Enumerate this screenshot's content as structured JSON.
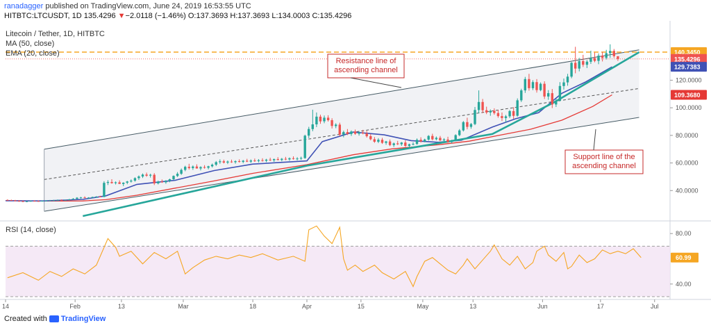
{
  "header": {
    "user": "ranadagger",
    "published_text": "published on TradingView.com, June 24, 2019 16:53:55 UTC",
    "symbol_line": "HITBTC:LTCUSDT, 1D",
    "last_price": "135.4296",
    "change_arrow": "▼",
    "change": "−2.0118 (−1.46%)",
    "ohlc": "O:137.3693 H:137.3693 L:134.0003 C:135.4296"
  },
  "footer": {
    "prefix": "Created with",
    "brand": "TradingView"
  },
  "legend": {
    "main": "Litecoin / Tether, 1D, HITBTC",
    "ma": "MA (50, close)",
    "ema": "EMA (20, close)",
    "rsi": "RSI (14, close)"
  },
  "annotations": {
    "resistance": [
      "Resistance line of",
      "ascending channel"
    ],
    "support": [
      "Support line of the",
      "ascending channel"
    ]
  },
  "price_badges": [
    {
      "text": "140.3450",
      "color": "#f5a623",
      "value": 140.345
    },
    {
      "text": "135.4296",
      "color": "#ef5350",
      "value": 135.4296
    },
    {
      "text": "129.7383",
      "color": "#3f51b5",
      "value": 129.7383
    },
    {
      "text": "109.3680",
      "color": "#e53935",
      "value": 109.368
    }
  ],
  "rsi_badge": {
    "text": "60.99",
    "color": "#f5a623"
  },
  "colors": {
    "up": "#26a69a",
    "down": "#ef5350",
    "ema": "#3f51b5",
    "ma": "#e53935",
    "rsi": "#f5a623",
    "channel": "#26a69a",
    "resistance_hline": "#f5a623"
  },
  "chart_data": {
    "type": "candlestick",
    "title": "Litecoin / Tether, 1D, HITBTC",
    "ylim": [
      20,
      160
    ],
    "y_ticks": [
      "40.0000",
      "60.0000",
      "80.0000",
      "100.0000",
      "120.0000"
    ],
    "x_ticks": [
      "14",
      "Feb",
      "13",
      "Mar",
      "18",
      "Apr",
      "15",
      "May",
      "13",
      "Jun",
      "17",
      "Jul"
    ],
    "x_tick_days": [
      0,
      18,
      30,
      46,
      64,
      78,
      92,
      108,
      121,
      139,
      154,
      168
    ],
    "x_days_total": 172,
    "ohlc": [
      [
        33.2,
        33.6,
        32.7,
        33.1
      ],
      [
        33.1,
        33.4,
        32.6,
        32.8
      ],
      [
        32.8,
        33.2,
        32.2,
        32.5
      ],
      [
        32.5,
        32.9,
        31.9,
        32.3
      ],
      [
        32.3,
        32.7,
        31.6,
        32.0
      ],
      [
        32.0,
        32.6,
        31.6,
        32.2
      ],
      [
        32.2,
        32.8,
        31.9,
        32.5
      ],
      [
        32.5,
        32.9,
        32.1,
        32.4
      ],
      [
        32.4,
        32.8,
        32.0,
        32.3
      ],
      [
        32.3,
        32.7,
        31.9,
        32.6
      ],
      [
        32.6,
        33.0,
        32.2,
        32.8
      ],
      [
        32.8,
        33.2,
        32.4,
        32.9
      ],
      [
        32.9,
        33.3,
        32.5,
        33.0
      ],
      [
        33.0,
        33.5,
        32.6,
        33.2
      ],
      [
        33.2,
        33.6,
        32.8,
        33.0
      ],
      [
        33.0,
        33.4,
        32.6,
        33.3
      ],
      [
        33.3,
        34.0,
        32.9,
        33.6
      ],
      [
        33.6,
        34.6,
        33.2,
        34.0
      ],
      [
        34.0,
        35.2,
        33.6,
        34.8
      ],
      [
        34.8,
        35.4,
        34.2,
        35.0
      ],
      [
        35.0,
        35.8,
        34.4,
        34.6
      ],
      [
        34.6,
        35.2,
        34.0,
        34.9
      ],
      [
        34.9,
        35.6,
        34.4,
        35.3
      ],
      [
        35.3,
        36.0,
        34.9,
        35.6
      ],
      [
        35.6,
        36.2,
        35.1,
        35.4
      ],
      [
        35.4,
        46.8,
        35.2,
        45.6
      ],
      [
        45.6,
        47.5,
        44.0,
        46.2
      ],
      [
        46.2,
        48.2,
        45.0,
        45.4
      ],
      [
        45.4,
        46.6,
        44.4,
        46.0
      ],
      [
        46.0,
        47.4,
        45.1,
        44.8
      ],
      [
        44.8,
        46.0,
        43.2,
        45.7
      ],
      [
        45.7,
        47.0,
        44.6,
        46.6
      ],
      [
        46.6,
        48.1,
        45.8,
        47.2
      ],
      [
        47.2,
        49.6,
        46.4,
        49.0
      ],
      [
        49.0,
        51.0,
        47.7,
        50.2
      ],
      [
        50.2,
        52.4,
        49.1,
        51.6
      ],
      [
        51.6,
        53.0,
        50.0,
        50.8
      ],
      [
        50.8,
        52.2,
        49.4,
        51.4
      ],
      [
        51.4,
        52.6,
        44.0,
        45.2
      ],
      [
        45.2,
        47.2,
        44.4,
        46.5
      ],
      [
        46.5,
        48.0,
        45.6,
        46.0
      ],
      [
        46.0,
        47.6,
        44.9,
        47.0
      ],
      [
        47.0,
        48.6,
        46.0,
        48.2
      ],
      [
        48.2,
        51.0,
        47.4,
        50.6
      ],
      [
        50.6,
        53.4,
        49.8,
        52.2
      ],
      [
        52.2,
        56.0,
        51.4,
        55.0
      ],
      [
        55.0,
        58.0,
        54.0,
        57.2
      ],
      [
        57.2,
        59.4,
        55.2,
        56.3
      ],
      [
        56.3,
        58.2,
        55.0,
        57.4
      ],
      [
        57.4,
        59.0,
        55.9,
        56.0
      ],
      [
        56.0,
        57.6,
        54.6,
        57.0
      ],
      [
        57.0,
        58.4,
        55.9,
        56.5
      ],
      [
        56.5,
        58.0,
        55.4,
        57.6
      ],
      [
        57.6,
        59.6,
        56.7,
        58.8
      ],
      [
        58.8,
        61.4,
        57.8,
        60.6
      ],
      [
        60.6,
        62.6,
        59.4,
        61.2
      ],
      [
        61.2,
        62.4,
        59.6,
        60.3
      ],
      [
        60.3,
        61.8,
        59.2,
        61.0
      ],
      [
        61.0,
        62.4,
        60.1,
        60.6
      ],
      [
        60.6,
        61.9,
        59.5,
        61.3
      ],
      [
        61.3,
        62.6,
        60.3,
        60.8
      ],
      [
        60.8,
        62.2,
        59.8,
        61.6
      ],
      [
        61.6,
        63.0,
        60.6,
        61.0
      ],
      [
        61.0,
        62.6,
        60.0,
        61.8
      ],
      [
        61.8,
        63.2,
        60.8,
        61.4
      ],
      [
        61.4,
        62.8,
        60.4,
        62.0
      ],
      [
        62.0,
        63.4,
        61.0,
        61.6
      ],
      [
        61.6,
        63.0,
        60.6,
        62.4
      ],
      [
        62.4,
        63.8,
        61.4,
        62.0
      ],
      [
        62.0,
        63.2,
        60.8,
        62.8
      ],
      [
        62.8,
        64.2,
        61.8,
        62.2
      ],
      [
        62.2,
        63.6,
        61.2,
        63.0
      ],
      [
        63.0,
        64.4,
        62.0,
        62.6
      ],
      [
        62.6,
        64.0,
        61.6,
        63.4
      ],
      [
        63.4,
        64.8,
        62.4,
        62.9
      ],
      [
        62.9,
        64.2,
        61.9,
        63.2
      ],
      [
        63.2,
        64.6,
        62.2,
        63.6
      ],
      [
        63.6,
        80.5,
        63.0,
        79.8
      ],
      [
        79.8,
        86.2,
        78.0,
        84.6
      ],
      [
        84.6,
        98.6,
        83.0,
        88.0
      ],
      [
        88.0,
        96.6,
        86.0,
        93.6
      ],
      [
        93.6,
        95.0,
        88.4,
        90.2
      ],
      [
        90.2,
        94.4,
        88.8,
        92.8
      ],
      [
        92.8,
        94.6,
        90.0,
        91.0
      ],
      [
        91.0,
        92.4,
        85.0,
        86.8
      ],
      [
        86.8,
        88.8,
        85.2,
        87.8
      ],
      [
        87.8,
        89.2,
        79.4,
        80.6
      ],
      [
        80.6,
        83.4,
        78.6,
        82.4
      ],
      [
        82.4,
        84.6,
        80.2,
        81.0
      ],
      [
        81.0,
        83.6,
        79.6,
        82.8
      ],
      [
        82.8,
        84.2,
        80.4,
        81.2
      ],
      [
        81.2,
        83.0,
        79.8,
        82.0
      ],
      [
        82.0,
        84.0,
        80.8,
        81.4
      ],
      [
        81.4,
        83.2,
        78.4,
        79.4
      ],
      [
        79.4,
        81.0,
        76.4,
        77.2
      ],
      [
        77.2,
        78.8,
        74.6,
        75.4
      ],
      [
        75.4,
        78.0,
        74.4,
        76.8
      ],
      [
        76.8,
        78.2,
        73.8,
        74.6
      ],
      [
        74.6,
        76.0,
        73.2,
        75.6
      ],
      [
        75.6,
        77.0,
        72.2,
        73.0
      ],
      [
        73.0,
        74.8,
        71.6,
        74.2
      ],
      [
        74.2,
        76.0,
        73.0,
        73.6
      ],
      [
        73.6,
        75.2,
        72.4,
        74.8
      ],
      [
        74.8,
        76.4,
        71.6,
        72.4
      ],
      [
        72.4,
        74.0,
        70.2,
        73.6
      ],
      [
        73.6,
        75.0,
        72.8,
        73.8
      ],
      [
        73.8,
        77.8,
        73.2,
        76.8
      ],
      [
        76.8,
        78.6,
        74.8,
        75.6
      ],
      [
        75.6,
        77.6,
        75.0,
        77.0
      ],
      [
        77.0,
        80.2,
        76.2,
        79.6
      ],
      [
        79.6,
        81.2,
        76.4,
        77.2
      ],
      [
        77.2,
        79.2,
        76.4,
        78.2
      ],
      [
        78.2,
        79.6,
        75.8,
        76.4
      ],
      [
        76.4,
        78.0,
        75.0,
        77.0
      ],
      [
        77.0,
        79.0,
        74.6,
        75.2
      ],
      [
        75.2,
        76.8,
        74.2,
        76.4
      ],
      [
        76.4,
        80.8,
        75.8,
        80.2
      ],
      [
        80.2,
        84.6,
        79.4,
        83.6
      ],
      [
        83.6,
        90.4,
        82.8,
        89.6
      ],
      [
        89.6,
        92.8,
        84.4,
        86.2
      ],
      [
        86.2,
        89.0,
        84.8,
        88.2
      ],
      [
        88.2,
        100.6,
        87.4,
        98.4
      ],
      [
        98.4,
        112.6,
        96.0,
        104.2
      ],
      [
        104.2,
        106.4,
        96.2,
        98.2
      ],
      [
        98.2,
        100.8,
        95.4,
        96.6
      ],
      [
        96.6,
        98.8,
        94.2,
        97.8
      ],
      [
        97.8,
        99.6,
        95.0,
        96.2
      ],
      [
        96.2,
        98.4,
        92.8,
        94.0
      ],
      [
        94.0,
        96.6,
        90.4,
        92.6
      ],
      [
        92.6,
        94.8,
        89.4,
        93.8
      ],
      [
        93.8,
        98.4,
        92.6,
        97.6
      ],
      [
        97.6,
        100.4,
        92.0,
        94.2
      ],
      [
        94.2,
        106.8,
        93.6,
        105.4
      ],
      [
        105.4,
        113.8,
        104.2,
        112.6
      ],
      [
        112.6,
        122.4,
        110.8,
        120.8
      ],
      [
        120.8,
        124.6,
        112.4,
        114.2
      ],
      [
        114.2,
        120.0,
        112.8,
        118.6
      ],
      [
        118.6,
        120.8,
        111.0,
        112.8
      ],
      [
        112.8,
        118.4,
        112.0,
        117.4
      ],
      [
        117.4,
        119.2,
        106.4,
        108.2
      ],
      [
        108.2,
        112.8,
        105.8,
        110.6
      ],
      [
        110.6,
        113.6,
        99.8,
        102.4
      ],
      [
        102.4,
        106.6,
        100.6,
        105.2
      ],
      [
        105.2,
        118.6,
        104.6,
        115.8
      ],
      [
        115.8,
        121.2,
        113.2,
        118.4
      ],
      [
        118.4,
        124.6,
        116.0,
        122.6
      ],
      [
        122.6,
        133.2,
        121.4,
        132.6
      ],
      [
        132.6,
        144.2,
        125.0,
        128.4
      ],
      [
        128.4,
        136.2,
        126.4,
        133.8
      ],
      [
        133.8,
        138.4,
        129.6,
        131.2
      ],
      [
        131.2,
        134.6,
        128.8,
        133.4
      ],
      [
        133.4,
        141.4,
        131.8,
        136.0
      ],
      [
        136.0,
        140.0,
        133.0,
        134.0
      ],
      [
        134.0,
        139.4,
        131.6,
        137.8
      ],
      [
        137.8,
        140.6,
        133.6,
        136.2
      ],
      [
        136.2,
        142.0,
        135.0,
        139.6
      ],
      [
        139.6,
        146.0,
        136.2,
        141.2
      ],
      [
        141.2,
        142.6,
        136.2,
        137.4
      ],
      [
        137.4,
        137.4,
        134.0,
        135.4
      ]
    ],
    "ema20": [
      [
        0,
        32.6
      ],
      [
        10,
        32.5
      ],
      [
        20,
        33.6
      ],
      [
        26,
        36.2
      ],
      [
        34,
        44.5
      ],
      [
        44,
        47.5
      ],
      [
        54,
        54.5
      ],
      [
        64,
        59.2
      ],
      [
        78,
        61.5
      ],
      [
        82,
        75.5
      ],
      [
        90,
        82.4
      ],
      [
        98,
        80.4
      ],
      [
        105,
        76.2
      ],
      [
        112,
        75.0
      ],
      [
        118,
        76.5
      ],
      [
        126,
        86.0
      ],
      [
        132,
        92.0
      ],
      [
        138,
        96.5
      ],
      [
        144,
        110.5
      ],
      [
        150,
        118.5
      ],
      [
        157,
        129.7
      ]
    ],
    "ma50": [
      [
        0,
        32.8
      ],
      [
        10,
        32.4
      ],
      [
        20,
        32.5
      ],
      [
        26,
        33.4
      ],
      [
        34,
        36.6
      ],
      [
        44,
        41.8
      ],
      [
        54,
        47.0
      ],
      [
        64,
        52.5
      ],
      [
        78,
        58.8
      ],
      [
        90,
        66.0
      ],
      [
        100,
        70.2
      ],
      [
        112,
        73.2
      ],
      [
        120,
        75.8
      ],
      [
        128,
        80.2
      ],
      [
        136,
        84.5
      ],
      [
        144,
        91.0
      ],
      [
        152,
        101.0
      ],
      [
        157,
        109.4
      ]
    ],
    "channel": {
      "resistance": [
        [
          10,
          70
        ],
        [
          164,
          142
        ]
      ],
      "midline": [
        [
          10,
          48
        ],
        [
          164,
          114
        ]
      ],
      "support": [
        [
          10,
          25
        ],
        [
          164,
          93
        ]
      ],
      "fill_start_day": 10
    },
    "trendline": [
      [
        20,
        21.5
      ],
      [
        78,
        58
      ],
      [
        126,
        81
      ],
      [
        142,
        104
      ],
      [
        164,
        140.3
      ]
    ],
    "resistance_level": 140.345,
    "rsi": {
      "title": "RSI (14, close)",
      "ylim": [
        30,
        90
      ],
      "ticks": [
        "40.00",
        "80.00"
      ],
      "band": [
        30,
        70
      ],
      "last": 60.99,
      "values": [
        [
          0,
          45
        ],
        [
          4,
          49
        ],
        [
          8,
          43
        ],
        [
          11,
          50
        ],
        [
          14,
          46
        ],
        [
          17,
          52
        ],
        [
          20,
          48
        ],
        [
          23,
          55
        ],
        [
          26,
          76
        ],
        [
          28,
          69
        ],
        [
          29,
          62
        ],
        [
          32,
          66
        ],
        [
          35,
          56
        ],
        [
          38,
          65
        ],
        [
          41,
          60
        ],
        [
          44,
          66
        ],
        [
          46,
          48
        ],
        [
          48,
          53
        ],
        [
          51,
          59
        ],
        [
          54,
          62
        ],
        [
          57,
          60
        ],
        [
          60,
          63
        ],
        [
          63,
          61
        ],
        [
          66,
          64
        ],
        [
          70,
          59
        ],
        [
          74,
          62
        ],
        [
          77,
          58
        ],
        [
          78,
          83
        ],
        [
          80,
          86
        ],
        [
          82,
          78
        ],
        [
          84,
          72
        ],
        [
          86,
          85
        ],
        [
          87,
          60
        ],
        [
          88,
          51
        ],
        [
          90,
          55
        ],
        [
          92,
          50
        ],
        [
          95,
          55
        ],
        [
          97,
          49
        ],
        [
          100,
          44
        ],
        [
          103,
          50
        ],
        [
          105,
          38
        ],
        [
          106,
          46
        ],
        [
          108,
          58
        ],
        [
          110,
          61
        ],
        [
          112,
          56
        ],
        [
          114,
          51
        ],
        [
          116,
          48
        ],
        [
          118,
          55
        ],
        [
          119,
          60
        ],
        [
          121,
          52
        ],
        [
          123,
          59
        ],
        [
          125,
          66
        ],
        [
          126,
          71
        ],
        [
          128,
          60
        ],
        [
          130,
          55
        ],
        [
          132,
          62
        ],
        [
          134,
          52
        ],
        [
          136,
          57
        ],
        [
          137,
          66
        ],
        [
          139,
          70
        ],
        [
          140,
          63
        ],
        [
          142,
          58
        ],
        [
          144,
          65
        ],
        [
          145,
          52
        ],
        [
          146,
          54
        ],
        [
          148,
          63
        ],
        [
          150,
          57
        ],
        [
          152,
          60
        ],
        [
          154,
          67
        ],
        [
          156,
          64
        ],
        [
          158,
          66
        ],
        [
          160,
          64
        ],
        [
          162,
          68
        ],
        [
          164,
          61
        ]
      ]
    }
  }
}
